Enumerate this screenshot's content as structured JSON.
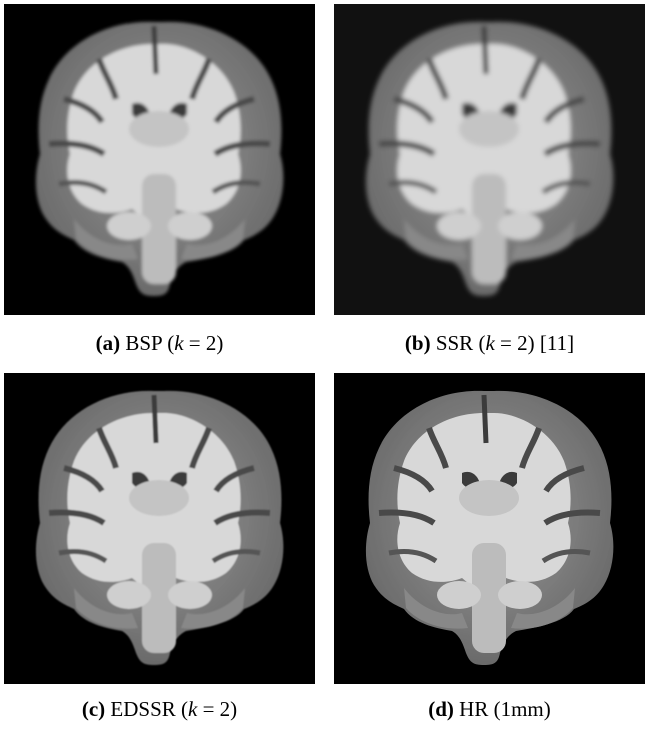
{
  "figure": {
    "panels": [
      {
        "letter": "(a)",
        "method": "BSP",
        "params_pre": "(",
        "var": "k",
        "params_post": " = 2)",
        "ref": "",
        "background": "#000000"
      },
      {
        "letter": "(b)",
        "method": "SSR",
        "params_pre": "(",
        "var": "k",
        "params_post": " = 2)",
        "ref": " [11]",
        "background": "#111111"
      },
      {
        "letter": "(c)",
        "method": "EDSSR",
        "params_pre": "(",
        "var": "k",
        "params_post": " = 2)",
        "ref": "",
        "background": "#000000"
      },
      {
        "letter": "(d)",
        "method": "HR",
        "params_pre": "(1mm)",
        "var": "",
        "params_post": "",
        "ref": "",
        "background": "#000000"
      }
    ]
  }
}
